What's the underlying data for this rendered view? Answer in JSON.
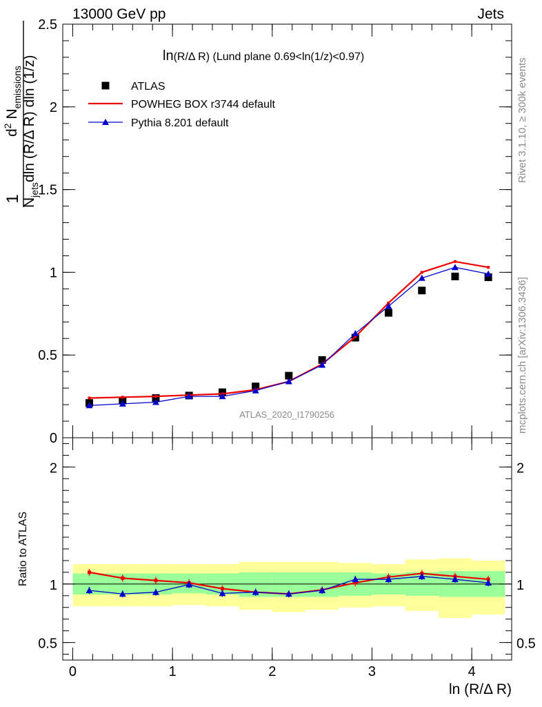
{
  "header": {
    "energy_label": "13000 GeV pp",
    "process_label": "Jets"
  },
  "side_labels": {
    "rivet": "Rivet 3.1.10, ≥ 300k events",
    "mcplots": "mcplots.cern.ch [arXiv:1306.3436]"
  },
  "chart_data": [
    {
      "type": "line",
      "panel": "main",
      "title": "ln(R/Δ R) (Lund plane 0.69<ln(1/z)<0.97)",
      "title_main": "ln",
      "title_frac": "(R/Δ R)",
      "title_rest": " (Lund plane 0.69<ln(1/z)<0.97)",
      "ylabel": "1/N_jets d²N_emissions / dln(R/Δ R) dln(1/z)",
      "ylabel_parts": {
        "one": "1",
        "den_pre": "N",
        "den_sub": "jets",
        "den_post": "dln (R/Δ R) dln (1/z)",
        "num_pre": "d",
        "num_sup": "2",
        "num_main": " N",
        "num_sub": "emissions"
      },
      "xlim": [
        -0.1,
        4.4
      ],
      "ylim": [
        0,
        2.5
      ],
      "yticks": [
        0,
        0.5,
        1,
        1.5,
        2,
        2.5
      ],
      "ytick_labels": [
        "0",
        "0.5",
        "1",
        "1.5",
        "2",
        "2.5"
      ],
      "watermark": "ATLAS_2020_I1790256",
      "legend_position": "top-left",
      "x": [
        0.166,
        0.5,
        0.833,
        1.166,
        1.5,
        1.833,
        2.166,
        2.5,
        2.833,
        3.166,
        3.5,
        3.833,
        4.166
      ],
      "series": [
        {
          "name": "ATLAS",
          "style": "markers-square",
          "color": "#000000",
          "values": [
            0.21,
            0.225,
            0.24,
            0.255,
            0.275,
            0.31,
            0.375,
            0.47,
            0.605,
            0.755,
            0.89,
            0.975,
            0.97
          ]
        },
        {
          "name": "POWHEG BOX r3744 default",
          "style": "line",
          "color": "#ee0000",
          "values": [
            0.24,
            0.245,
            0.25,
            0.258,
            0.265,
            0.29,
            0.34,
            0.445,
            0.61,
            0.815,
            1.0,
            1.065,
            1.03
          ]
        },
        {
          "name": "Pythia 8.201 default",
          "style": "line-triangles",
          "color": "#0000cc",
          "values": [
            0.195,
            0.205,
            0.215,
            0.25,
            0.25,
            0.285,
            0.34,
            0.44,
            0.63,
            0.795,
            0.965,
            1.03,
            0.99
          ]
        }
      ]
    },
    {
      "type": "line",
      "panel": "ratio",
      "ylabel": "Ratio to ATLAS",
      "xlabel": "ln (R/Δ R)",
      "xlim": [
        -0.1,
        4.4
      ],
      "ylim": [
        0.35,
        2.25
      ],
      "xticks": [
        0,
        1,
        2,
        3,
        4
      ],
      "xtick_labels": [
        "0",
        "1",
        "2",
        "3",
        "4"
      ],
      "yticks": [
        0.5,
        1,
        2
      ],
      "ytick_labels": [
        "0.5",
        "1",
        "2"
      ],
      "x": [
        0.166,
        0.5,
        0.833,
        1.166,
        1.5,
        1.833,
        2.166,
        2.5,
        2.833,
        3.166,
        3.5,
        3.833,
        4.166
      ],
      "bin_edges": [
        0,
        0.333,
        0.666,
        1.0,
        1.333,
        1.666,
        2.0,
        2.333,
        2.666,
        3.0,
        3.333,
        3.666,
        4.0,
        4.333
      ],
      "band_inner": [
        [
          0.91,
          1.09
        ],
        [
          0.91,
          1.09
        ],
        [
          0.91,
          1.09
        ],
        [
          0.92,
          1.09
        ],
        [
          0.91,
          1.09
        ],
        [
          0.89,
          1.1
        ],
        [
          0.89,
          1.1
        ],
        [
          0.89,
          1.1
        ],
        [
          0.9,
          1.1
        ],
        [
          0.91,
          1.09
        ],
        [
          0.9,
          1.1
        ],
        [
          0.89,
          1.11
        ],
        [
          0.89,
          1.11
        ]
      ],
      "band_outer": [
        [
          0.81,
          1.17
        ],
        [
          0.81,
          1.17
        ],
        [
          0.81,
          1.17
        ],
        [
          0.82,
          1.17
        ],
        [
          0.81,
          1.17
        ],
        [
          0.78,
          1.19
        ],
        [
          0.76,
          1.19
        ],
        [
          0.78,
          1.19
        ],
        [
          0.8,
          1.18
        ],
        [
          0.81,
          1.17
        ],
        [
          0.77,
          1.21
        ],
        [
          0.71,
          1.22
        ],
        [
          0.74,
          1.2
        ]
      ],
      "band_colors": {
        "inner": "#99ff99",
        "outer": "#ffff99"
      },
      "series": [
        {
          "name": "POWHEG BOX r3744 default",
          "color": "#ee0000",
          "values": [
            1.1,
            1.05,
            1.03,
            1.01,
            0.96,
            0.93,
            0.915,
            0.95,
            1.01,
            1.06,
            1.09,
            1.065,
            1.04
          ]
        },
        {
          "name": "Pythia 8.201 default",
          "color": "#0000cc",
          "values": [
            0.945,
            0.915,
            0.93,
            0.995,
            0.92,
            0.93,
            0.915,
            0.945,
            1.04,
            1.04,
            1.065,
            1.04,
            1.01
          ]
        }
      ]
    }
  ]
}
